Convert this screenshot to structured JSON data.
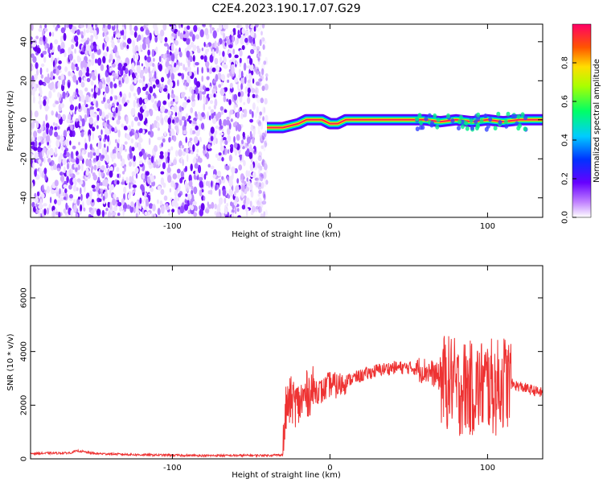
{
  "title": "C2E4.2023.190.17.07.G29",
  "colors": {
    "snr_line": "#ee3333",
    "axis": "#000000"
  },
  "chart_data": [
    {
      "type": "heatmap",
      "xlabel": "Height of straight line (km)",
      "ylabel": "Frequency (Hz)",
      "xlim": [
        -190,
        135
      ],
      "ylim": [
        -50,
        49
      ],
      "xticks": [
        -100,
        0,
        100
      ],
      "yticks": [
        -40,
        -20,
        0,
        20,
        40
      ],
      "noise_region_x": [
        -190,
        -40
      ],
      "signal_trace": {
        "x": [
          -40,
          -35,
          -30,
          -25,
          -20,
          -15,
          -10,
          -5,
          0,
          5,
          10,
          20,
          40,
          60,
          70,
          80,
          90,
          100,
          110,
          120,
          135
        ],
        "freq": [
          -4,
          -4,
          -4,
          -3,
          -2,
          0,
          0,
          0,
          -2,
          -2,
          0,
          0,
          0,
          0,
          -1,
          0,
          -1,
          0,
          -1,
          0,
          0
        ]
      },
      "colorbar": {
        "label": "Normalized spectral amplitude",
        "range": [
          0,
          1
        ],
        "ticks": [
          "0.0",
          "0.2",
          "0.4",
          "0.6",
          "0.8"
        ]
      }
    },
    {
      "type": "line",
      "xlabel": "Height of straight line (km)",
      "ylabel": "SNR (10 * v/v)",
      "xlim": [
        -190,
        135
      ],
      "ylim": [
        0,
        7200
      ],
      "xticks": [
        -100,
        0,
        100
      ],
      "yticks": [
        0,
        2000,
        4000,
        6000
      ],
      "series": [
        {
          "x": [
            -190,
            -165,
            -160,
            -150,
            -120,
            -80,
            -40,
            -30,
            -28,
            -25,
            -20,
            -15,
            -10,
            -5,
            0,
            5,
            10,
            20,
            30,
            40,
            50,
            60,
            65,
            70,
            75,
            78,
            80,
            85,
            90,
            95,
            100,
            105,
            110,
            115,
            120,
            135
          ],
          "values": [
            200,
            220,
            300,
            200,
            150,
            120,
            130,
            150,
            1800,
            2200,
            2000,
            2400,
            2600,
            2500,
            2800,
            2700,
            2900,
            3100,
            3300,
            3400,
            3400,
            3300,
            3200,
            3000,
            2800,
            3000,
            2500,
            2700,
            2600,
            2700,
            2800,
            2600,
            2900,
            2800,
            2700,
            2450
          ]
        }
      ]
    }
  ]
}
